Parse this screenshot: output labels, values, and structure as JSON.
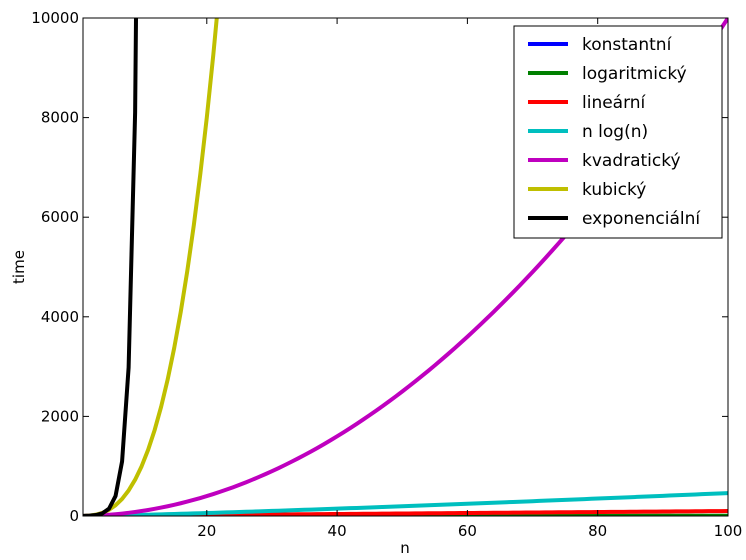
{
  "chart_data": {
    "type": "line",
    "title": "",
    "xlabel": "n",
    "ylabel": "time",
    "xlim": [
      1,
      100
    ],
    "ylim": [
      0,
      10000
    ],
    "x_ticks": [
      20,
      40,
      60,
      80,
      100
    ],
    "y_ticks": [
      0,
      2000,
      4000,
      6000,
      8000,
      10000
    ],
    "x_tick_labels": [
      "20",
      "40",
      "60",
      "80",
      "100"
    ],
    "y_tick_labels": [
      "0",
      "2000",
      "4000",
      "6000",
      "8000",
      "10000"
    ],
    "grid": false,
    "legend_position": "top-right",
    "series": [
      {
        "name": "konstantní",
        "color": "#0000ff",
        "formula": "1"
      },
      {
        "name": "logaritmický",
        "color": "#008000",
        "formula": "log(n)"
      },
      {
        "name": "lineární",
        "color": "#ff0000",
        "formula": "n"
      },
      {
        "name": "n log(n)",
        "color": "#00bfbf",
        "formula": "n*log(n)"
      },
      {
        "name": "kvadratický",
        "color": "#bf00bf",
        "formula": "n^2"
      },
      {
        "name": "kubický",
        "color": "#bfbf00",
        "formula": "n^3"
      },
      {
        "name": "exponenciální",
        "color": "#000000",
        "formula": "e^n"
      }
    ]
  }
}
